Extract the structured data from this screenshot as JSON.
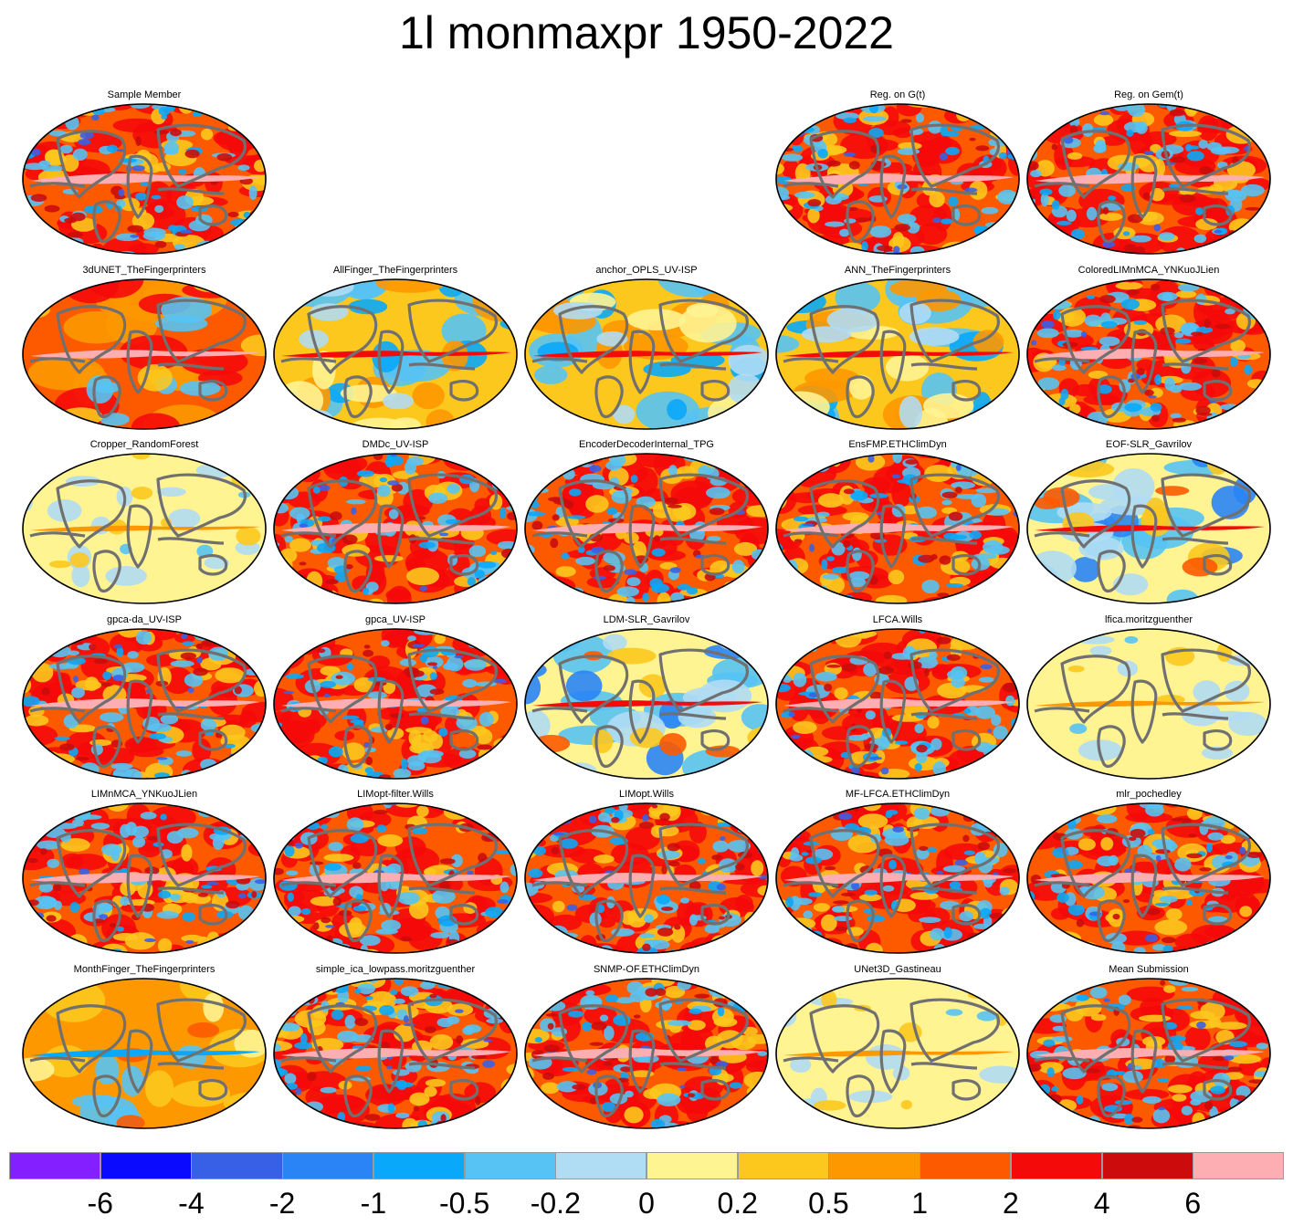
{
  "figure": {
    "title": "1l monmaxpr 1950-2022"
  },
  "colors": {
    "land_outline": "#707070",
    "map_border": "#000000",
    "panel_background": "#ffffff"
  },
  "chart_data": {
    "type": "map-grid",
    "projection": "global-ellipse",
    "grid": {
      "rows": 6,
      "cols": 5
    },
    "panels": [
      {
        "label": "Sample Member",
        "row": 0,
        "col": 0,
        "style": "noisy-red"
      },
      {
        "label": "Reg. on G(t)",
        "row": 0,
        "col": 3,
        "style": "noisy-red"
      },
      {
        "label": "Reg. on Gem(t)",
        "row": 0,
        "col": 4,
        "style": "noisy-red"
      },
      {
        "label": "3dUNET_TheFingerprinters",
        "row": 1,
        "col": 0,
        "style": "smooth-red"
      },
      {
        "label": "AllFinger_TheFingerprinters",
        "row": 1,
        "col": 1,
        "style": "smooth-mixed"
      },
      {
        "label": "anchor_OPLS_UV-ISP",
        "row": 1,
        "col": 2,
        "style": "smooth-mixed"
      },
      {
        "label": "ANN_TheFingerprinters",
        "row": 1,
        "col": 3,
        "style": "smooth-mixed"
      },
      {
        "label": "ColoredLIMnMCA_YNKuoJLien",
        "row": 1,
        "col": 4,
        "style": "noisy-red"
      },
      {
        "label": "Cropper_RandomForest",
        "row": 2,
        "col": 0,
        "style": "pale-yellow"
      },
      {
        "label": "DMDc_UV-ISP",
        "row": 2,
        "col": 1,
        "style": "noisy-red"
      },
      {
        "label": "EncoderDecoderInternal_TPG",
        "row": 2,
        "col": 2,
        "style": "noisy-red"
      },
      {
        "label": "EnsFMP.ETHClimDyn",
        "row": 2,
        "col": 3,
        "style": "noisy-red"
      },
      {
        "label": "EOF-SLR_Gavrilov",
        "row": 2,
        "col": 4,
        "style": "smooth-blue"
      },
      {
        "label": "gpca-da_UV-ISP",
        "row": 3,
        "col": 0,
        "style": "noisy-red"
      },
      {
        "label": "gpca_UV-ISP",
        "row": 3,
        "col": 1,
        "style": "noisy-red"
      },
      {
        "label": "LDM-SLR_Gavrilov",
        "row": 3,
        "col": 2,
        "style": "smooth-blue"
      },
      {
        "label": "LFCA.Wills",
        "row": 3,
        "col": 3,
        "style": "noisy-red"
      },
      {
        "label": "lfica.moritzguenther",
        "row": 3,
        "col": 4,
        "style": "pale-yellow"
      },
      {
        "label": "LIMnMCA_YNKuoJLien",
        "row": 4,
        "col": 0,
        "style": "noisy-red"
      },
      {
        "label": "LIMopt-filter.Wills",
        "row": 4,
        "col": 1,
        "style": "noisy-red"
      },
      {
        "label": "LIMopt.Wills",
        "row": 4,
        "col": 2,
        "style": "noisy-red"
      },
      {
        "label": "MF-LFCA.ETHClimDyn",
        "row": 4,
        "col": 3,
        "style": "noisy-red"
      },
      {
        "label": "mlr_pochedley",
        "row": 4,
        "col": 4,
        "style": "noisy-red"
      },
      {
        "label": "MonthFinger_TheFingerprinters",
        "row": 5,
        "col": 0,
        "style": "smooth-orange"
      },
      {
        "label": "simple_ica_lowpass.moritzguenther",
        "row": 5,
        "col": 1,
        "style": "noisy-red"
      },
      {
        "label": "SNMP-OF.ETHClimDyn",
        "row": 5,
        "col": 2,
        "style": "noisy-red"
      },
      {
        "label": "UNet3D_Gastineau",
        "row": 5,
        "col": 3,
        "style": "pale-yellow"
      },
      {
        "label": "Mean Submission",
        "row": 5,
        "col": 4,
        "style": "noisy-red"
      }
    ],
    "colorbar": {
      "colors": [
        "#8420ff",
        "#0a0aff",
        "#3860e6",
        "#2a84f6",
        "#0aa8fa",
        "#56c3f4",
        "#b0dcf4",
        "#fff392",
        "#fcc81e",
        "#fd9800",
        "#fd5a00",
        "#f50a0a",
        "#cc0c0c",
        "#fcaeb2"
      ],
      "tick_labels": [
        "-6",
        "-4",
        "-2",
        "-1",
        "-0.5",
        "-0.2",
        "0",
        "0.2",
        "0.5",
        "1",
        "2",
        "4",
        "6"
      ]
    }
  }
}
